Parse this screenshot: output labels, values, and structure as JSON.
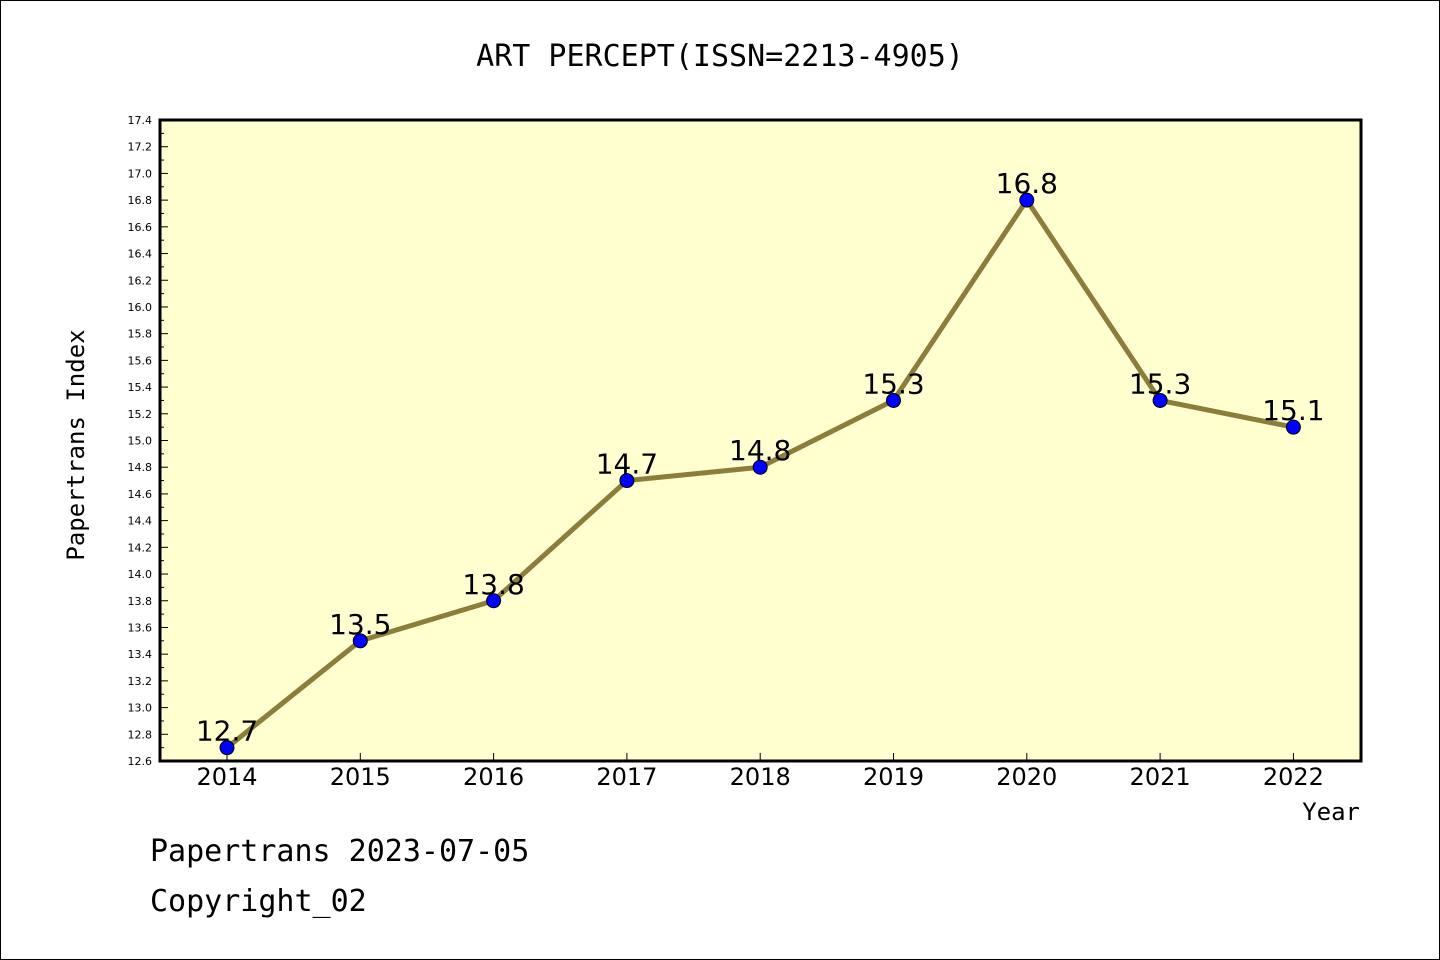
{
  "chart_data": {
    "type": "line",
    "title": "ART PERCEPT(ISSN=2213-4905)",
    "xlabel": "Year",
    "ylabel": "Papertrans Index",
    "categories": [
      "2014",
      "2015",
      "2016",
      "2017",
      "2018",
      "2019",
      "2020",
      "2021",
      "2022"
    ],
    "series": [
      {
        "values": [
          12.7,
          13.5,
          13.8,
          14.7,
          14.8,
          15.3,
          16.8,
          15.3,
          15.1
        ]
      }
    ],
    "data_labels": [
      "12.7",
      "13.5",
      "13.8",
      "14.7",
      "14.8",
      "15.3",
      "16.8",
      "15.3",
      "15.1"
    ],
    "ylim": [
      12.6,
      17.4
    ],
    "yticks": [
      "12.6",
      "12.8",
      "13.0",
      "13.2",
      "13.4",
      "13.6",
      "13.8",
      "14.0",
      "14.2",
      "14.4",
      "14.6",
      "14.8",
      "15.0",
      "15.2",
      "15.4",
      "15.6",
      "15.8",
      "16.0",
      "16.2",
      "16.4",
      "16.6",
      "16.8",
      "17.0",
      "17.2",
      "17.4"
    ],
    "grid": false,
    "colors": {
      "plot_bg": "#ffffd0",
      "line": "#8b7d3a",
      "marker": "#0000ff"
    }
  },
  "footer": {
    "line1": "Papertrans 2023-07-05",
    "line2": "Copyright_02"
  }
}
